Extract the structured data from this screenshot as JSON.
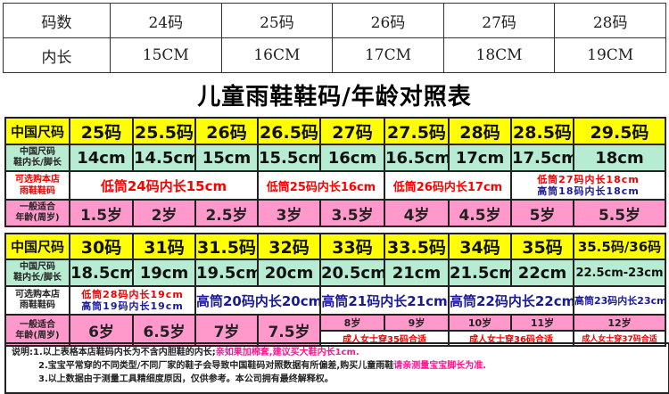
{
  "inner_table": {
    "row1_label": "码数",
    "row2_label": "内长",
    "sizes": [
      "24码",
      "25码",
      "26码",
      "27码",
      "28码"
    ],
    "lengths": [
      "15CM",
      "16CM",
      "17CM",
      "18CM",
      "19CM"
    ]
  },
  "title": "儿童雨鞋鞋码/年龄对照表",
  "labels": {
    "size": "中国尺码",
    "len1": "中国尺码",
    "len2": "鞋内长/脚长",
    "shop1": "可选购本店",
    "shop2": "雨鞋鞋码",
    "age1": "一般适合",
    "age2": "年龄(周岁)"
  },
  "table1": {
    "sizes": [
      "25码",
      "25.5码",
      "26码",
      "26.5码",
      "27码",
      "27.5码",
      "28码",
      "28.5码",
      "29.5码"
    ],
    "lengths": [
      "14cm",
      "14.5cm",
      "15cm",
      "15.5cm",
      "16cm",
      "16.5cm",
      "17cm",
      "17.5cm",
      "18cm"
    ],
    "shop": [
      "低筒24码内长15cm",
      "低筒25码内长16cm",
      "低筒26码内长17cm",
      "低筒27码内长18cm",
      "高筒18码内长18cm"
    ],
    "ages": [
      "1.5岁",
      "2岁",
      "2.5岁",
      "3岁",
      "3.5岁",
      "4岁",
      "4.5岁",
      "5岁",
      "5.5岁"
    ]
  },
  "table2": {
    "sizes": [
      "30码",
      "31码",
      "31.5码",
      "32码",
      "33码",
      "33.5码",
      "34码",
      "35码",
      "35.5码/36码"
    ],
    "lengths": [
      "18.5cm",
      "19cm",
      "19.5cm",
      "20cm",
      "20.5cm",
      "21cm",
      "21.5cm",
      "22cm",
      "22.5cm-23cm"
    ],
    "shop": [
      "低筒28码内长19cm",
      "高筒19码内长19cm",
      "高筒20码内长20cm",
      "高筒21码内长21cm",
      "高筒22码内长22cm",
      "高筒23码内长23cm"
    ],
    "ages": [
      "6岁",
      "6.5岁",
      "7岁",
      "7.5岁",
      "8岁",
      "9岁",
      "10岁",
      "11岁",
      "12岁"
    ],
    "adult": [
      "成人女士穿35码合适",
      "成人女士穿36码合适",
      "成人女士穿37码合适"
    ]
  },
  "notes": {
    "prefix": "说明:",
    "n1": "1.以上表格本店鞋码内长为不含内胆鞋的内长;",
    "n1_pink": "亲如果加棉套,建议买大鞋内长1cm.",
    "n2": "2.宝宝平常穿的不同类型/不同厂家的鞋子会导致中国鞋码对照数据有所偏差,购买儿童雨鞋",
    "n2_pink": "请亲测量宝宝脚长为准.",
    "n3": "3.以上数据由于测量工具精细度原因，仅供参考。本公司拥有最终解释权。"
  }
}
